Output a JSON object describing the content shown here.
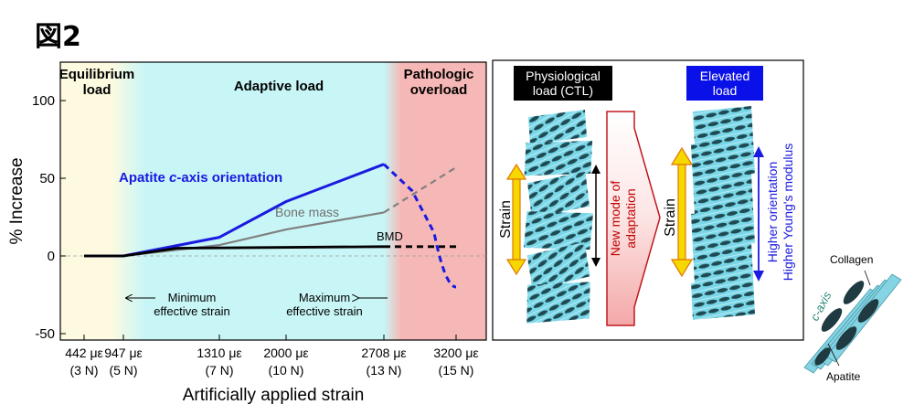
{
  "figure_label": "図2",
  "chart_data": {
    "type": "line",
    "ylabel": "% Increase",
    "xlabel": "Artificially applied strain",
    "ylim": [
      -50,
      120
    ],
    "yticks": [
      -50,
      0,
      50,
      100
    ],
    "grid": false,
    "xticks": [
      {
        "strain": "442 με",
        "load": "(3 N)"
      },
      {
        "strain": "947 με",
        "load": "(5 N)"
      },
      {
        "strain": "1310 με",
        "load": "(7 N)"
      },
      {
        "strain": "2000 με",
        "load": "(10 N)"
      },
      {
        "strain": "2708 με",
        "load": "(13 N)"
      },
      {
        "strain": "3200 με",
        "load": "(15 N)"
      }
    ],
    "zones": [
      {
        "label_lines": [
          "Equilibrium",
          "load"
        ],
        "color": "#fdfae0"
      },
      {
        "label_lines": [
          "Adaptive load"
        ],
        "color": "#c8f6f6"
      },
      {
        "label_lines": [
          "Pathologic",
          "overload"
        ],
        "color": "#f6b8b6"
      }
    ],
    "series": [
      {
        "name": "Apatite c-axis orientation",
        "color": "#1a1ae0",
        "points": [
          [
            442,
            0
          ],
          [
            947,
            0
          ],
          [
            1310,
            12
          ],
          [
            2000,
            35
          ],
          [
            2708,
            59
          ]
        ],
        "dashed_points": [
          [
            2708,
            59
          ],
          [
            2900,
            42
          ],
          [
            3050,
            15
          ],
          [
            3200,
            -20
          ]
        ]
      },
      {
        "name": "Bone mass",
        "color": "#808080",
        "points": [
          [
            442,
            0
          ],
          [
            947,
            0
          ],
          [
            1310,
            7
          ],
          [
            2000,
            17
          ],
          [
            2708,
            28
          ]
        ],
        "dashed_points": [
          [
            2708,
            28
          ],
          [
            3200,
            57
          ]
        ]
      },
      {
        "name": "BMD",
        "color": "#000000",
        "points": [
          [
            442,
            0
          ],
          [
            947,
            0
          ],
          [
            1150,
            5
          ],
          [
            2708,
            6
          ]
        ],
        "dashed_points": [
          [
            2708,
            6
          ],
          [
            3200,
            6
          ]
        ]
      }
    ],
    "annotations": {
      "min_strain": [
        "Minimum",
        "effective strain"
      ],
      "max_strain": [
        "Maximum",
        "effective strain"
      ]
    }
  },
  "diagram": {
    "physiological_label": [
      "Physiological",
      "load (CTL)"
    ],
    "elevated_label": [
      "Elevated",
      "load"
    ],
    "strain_label": "Strain",
    "arrow_text": [
      "New mode of",
      "adaptation"
    ],
    "right_annotation": [
      "Higher orientation",
      "Higher Young's modulus"
    ]
  },
  "inset": {
    "collagen": "Collagen",
    "c_axis": "c-axis",
    "apatite": "Apatite"
  }
}
